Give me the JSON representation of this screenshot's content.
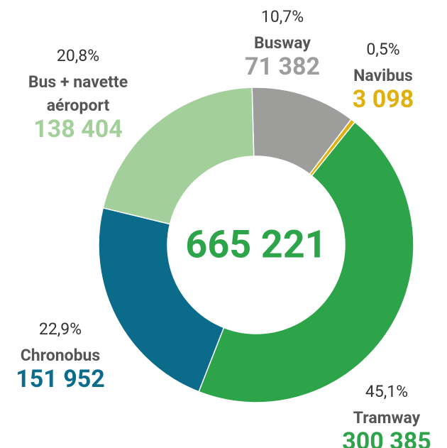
{
  "chart_data": {
    "type": "donut",
    "categories": [
      "Busway",
      "Navibus",
      "Tramway",
      "Chronobus",
      "Bus + navette aéroport"
    ],
    "values": [
      71382,
      3098,
      300385,
      151952,
      138404
    ],
    "value_labels": [
      "71 382",
      "3 098",
      "300 385",
      "151 952",
      "138 404"
    ],
    "percent_labels": [
      "10,7%",
      "0,5%",
      "45,1%",
      "22,9%",
      "20,8%"
    ],
    "colors": [
      "#9d9d9c",
      "#e0b10e",
      "#2ea44a",
      "#0a6b8a",
      "#a3cf9b"
    ],
    "total": 665221,
    "total_label": "665 221"
  }
}
